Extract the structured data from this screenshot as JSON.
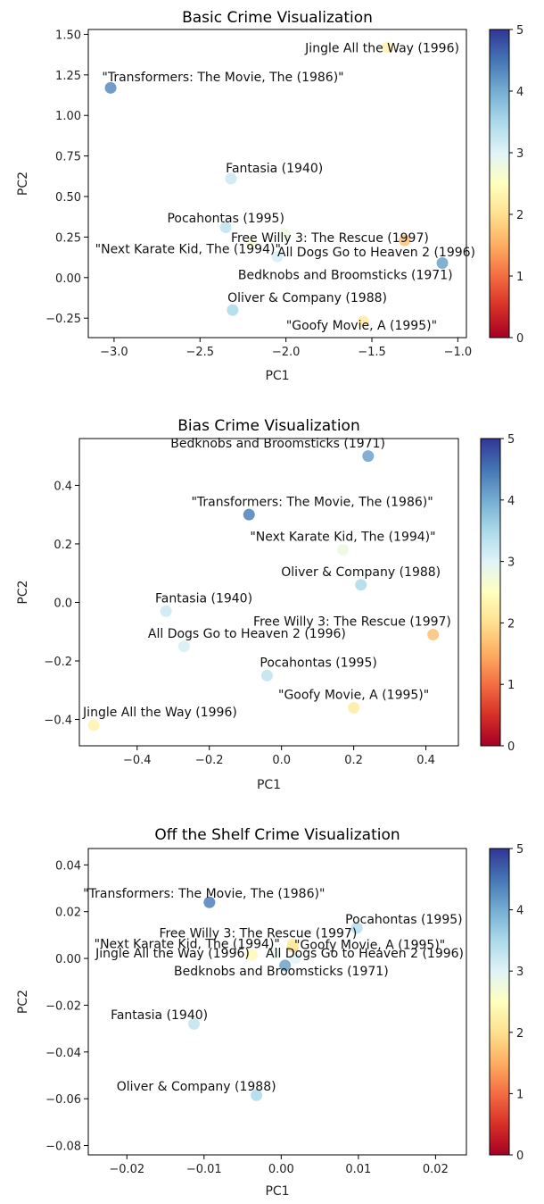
{
  "colorbar": {
    "min": 0,
    "max": 5,
    "ticks": [
      "0",
      "1",
      "2",
      "3",
      "4",
      "5"
    ],
    "stops": [
      "#a50026",
      "#d73027",
      "#f46d43",
      "#fdae61",
      "#fee090",
      "#ffffbf",
      "#e0f3f8",
      "#abd9e9",
      "#74add1",
      "#4575b4",
      "#313695"
    ]
  },
  "chart_data": [
    {
      "type": "scatter",
      "title": "Basic Crime Visualization",
      "xlabel": "PC1",
      "ylabel": "PC2",
      "xlim": [
        -3.15,
        -0.95
      ],
      "ylim": [
        -0.37,
        1.53
      ],
      "xticks": [
        -3.0,
        -2.5,
        -2.0,
        -1.5,
        -1.0
      ],
      "xtick_labels": [
        "−3.0",
        "−2.5",
        "−2.0",
        "−1.5",
        "−1.0"
      ],
      "yticks": [
        -0.25,
        0.0,
        0.25,
        0.5,
        0.75,
        1.0,
        1.25,
        1.5
      ],
      "ytick_labels": [
        "−0.25",
        "0.00",
        "0.25",
        "0.50",
        "0.75",
        "1.00",
        "1.25",
        "1.50"
      ],
      "points": [
        {
          "label": "Jingle All the Way (1996)",
          "x": -1.41,
          "y": 1.42,
          "value": 2.3,
          "anchor": "middle",
          "dx": -0.03,
          "dy": -0.03
        },
        {
          "label": "\"Transformers: The Movie, The (1986)\"",
          "x": -3.02,
          "y": 1.17,
          "value": 4.3,
          "anchor": "start",
          "dx": -0.05,
          "dy": 0.04
        },
        {
          "label": "Fantasia (1940)",
          "x": -2.32,
          "y": 0.61,
          "value": 3.2,
          "anchor": "start",
          "dx": -0.03,
          "dy": 0.04
        },
        {
          "label": "Pocahontas (1995)",
          "x": -2.35,
          "y": 0.31,
          "value": 3.3,
          "anchor": "middle",
          "dx": 0.0,
          "dy": 0.03
        },
        {
          "label": "Free Willy 3: The Rescue (1997)",
          "x": -2.01,
          "y": 0.27,
          "value": 2.8,
          "anchor": "start",
          "dx": -0.31,
          "dy": -0.05
        },
        {
          "label": "\"Next Karate Kid, The (1994)\"",
          "x": -2.2,
          "y": 0.22,
          "value": 2.7,
          "anchor": "middle",
          "dx": -0.37,
          "dy": -0.07
        },
        {
          "label": "All Dogs Go to Heaven 2 (1996)",
          "x": -2.05,
          "y": 0.13,
          "value": 3.1,
          "anchor": "start",
          "dx": 0.0,
          "dy": 0.0
        },
        {
          "label": "Free Willy 3 marker",
          "hidden_label": true,
          "x": -1.31,
          "y": 0.23,
          "value": 1.7,
          "anchor": "start",
          "dx": 0,
          "dy": 0
        },
        {
          "label": "Bedknobs and Broomsticks (1971)",
          "x": -1.09,
          "y": 0.09,
          "value": 4.1,
          "anchor": "end",
          "dx": 0.06,
          "dy": -0.1
        },
        {
          "label": "Oliver & Company (1988)",
          "x": -2.31,
          "y": -0.2,
          "value": 3.5,
          "anchor": "start",
          "dx": -0.03,
          "dy": 0.05
        },
        {
          "label": "\"Goofy Movie, A (1995)\"",
          "x": -1.55,
          "y": -0.27,
          "value": 2.2,
          "anchor": "middle",
          "dx": -0.01,
          "dy": -0.05
        }
      ]
    },
    {
      "type": "scatter",
      "title": "Bias Crime Visualization",
      "xlabel": "PC1",
      "ylabel": "PC2",
      "xlim": [
        -0.56,
        0.49
      ],
      "ylim": [
        -0.49,
        0.56
      ],
      "xticks": [
        -0.4,
        -0.2,
        0.0,
        0.2,
        0.4
      ],
      "xtick_labels": [
        "−0.4",
        "−0.2",
        "0.0",
        "0.2",
        "0.4"
      ],
      "yticks": [
        -0.4,
        -0.2,
        0.0,
        0.2,
        0.4
      ],
      "ytick_labels": [
        "−0.4",
        "−0.2",
        "0.0",
        "0.2",
        "0.4"
      ],
      "points": [
        {
          "label": "Bedknobs and Broomsticks (1971)",
          "x": 0.24,
          "y": 0.5,
          "value": 4.1,
          "anchor": "middle",
          "dx": -0.25,
          "dy": 0.03
        },
        {
          "label": "\"Transformers: The Movie, The (1986)\"",
          "x": -0.09,
          "y": 0.3,
          "value": 4.4,
          "anchor": "start",
          "dx": -0.16,
          "dy": 0.03
        },
        {
          "label": "\"Next Karate Kid, The (1994)\"",
          "x": 0.17,
          "y": 0.18,
          "value": 2.8,
          "anchor": "middle",
          "dx": 0.0,
          "dy": 0.03
        },
        {
          "label": "Oliver & Company (1988)",
          "x": 0.22,
          "y": 0.06,
          "value": 3.5,
          "anchor": "middle",
          "dx": 0.0,
          "dy": 0.03
        },
        {
          "label": "Fantasia (1940)",
          "x": -0.32,
          "y": -0.03,
          "value": 3.2,
          "anchor": "start",
          "dx": -0.03,
          "dy": 0.03
        },
        {
          "label": "Free Willy 3: The Rescue (1997)",
          "x": 0.42,
          "y": -0.11,
          "value": 1.7,
          "anchor": "end",
          "dx": 0.05,
          "dy": 0.03
        },
        {
          "label": "All Dogs Go to Heaven 2 (1996)",
          "x": -0.27,
          "y": -0.15,
          "value": 3.1,
          "anchor": "start",
          "dx": -0.1,
          "dy": 0.03
        },
        {
          "label": "Pocahontas (1995)",
          "x": -0.04,
          "y": -0.25,
          "value": 3.3,
          "anchor": "start",
          "dx": -0.02,
          "dy": 0.03
        },
        {
          "label": "\"Goofy Movie, A (1995)\"",
          "x": 0.2,
          "y": -0.36,
          "value": 2.2,
          "anchor": "middle",
          "dx": 0.0,
          "dy": 0.03
        },
        {
          "label": "Jingle All the Way (1996)",
          "x": -0.52,
          "y": -0.42,
          "value": 2.3,
          "anchor": "start",
          "dx": -0.03,
          "dy": 0.03
        }
      ]
    },
    {
      "type": "scatter",
      "title": "Off the Shelf Crime Visualization",
      "xlabel": "PC1",
      "ylabel": "PC2",
      "xlim": [
        -0.025,
        0.024
      ],
      "ylim": [
        -0.084,
        0.047
      ],
      "xticks": [
        -0.02,
        -0.01,
        0.0,
        0.01,
        0.02
      ],
      "xtick_labels": [
        "−0.02",
        "−0.01",
        "0.00",
        "0.01",
        "0.02"
      ],
      "yticks": [
        -0.08,
        -0.06,
        -0.04,
        -0.02,
        0.0,
        0.02,
        0.04
      ],
      "ytick_labels": [
        "−0.08",
        "−0.06",
        "−0.04",
        "−0.02",
        "0.00",
        "0.02",
        "0.04"
      ],
      "points": [
        {
          "label": "\"Transformers: The Movie, The (1986)\"",
          "x": -0.0093,
          "y": 0.024,
          "value": 4.4,
          "anchor": "middle",
          "dx": -0.0007,
          "dy": 0.002
        },
        {
          "label": "Pocahontas (1995)",
          "x": 0.0098,
          "y": 0.013,
          "value": 3.4,
          "anchor": "start",
          "dx": -0.0015,
          "dy": 0.002
        },
        {
          "label": "Free Willy 3: The Rescue (1997)",
          "x": 0.0015,
          "y": 0.005,
          "value": 1.8,
          "anchor": "middle",
          "dx": -0.0045,
          "dy": 0.004
        },
        {
          "label": "\"Next Karate Kid, The (1994)\"",
          "x": -0.0038,
          "y": 0.0015,
          "value": 2.4,
          "anchor": "middle",
          "dx": -0.0084,
          "dy": 0.003
        },
        {
          "label": "\"Goofy Movie, A (1995)\"",
          "x": 0.0015,
          "y": 0.006,
          "value": 2.2,
          "anchor": "start",
          "dx": 0.0002,
          "dy": -0.002
        },
        {
          "label": "Jingle All the Way (1996)",
          "x": -0.0008,
          "y": 0.002,
          "value": 2.9,
          "anchor": "end",
          "dx": -0.0033,
          "dy": -0.0015
        },
        {
          "label": "All Dogs Go to Heaven 2 (1996)",
          "x": 0.0005,
          "y": -0.003,
          "value": 4.1,
          "anchor": "start",
          "dx": -0.0025,
          "dy": 0.0035
        },
        {
          "label": "Bedknobs and Broomsticks (1971)",
          "x": 0.0018,
          "y": 0.0,
          "value": 3.0,
          "anchor": "middle",
          "dx": -0.0018,
          "dy": -0.0073
        },
        {
          "label": "Fantasia (1940)",
          "x": -0.0113,
          "y": -0.028,
          "value": 3.3,
          "anchor": "middle",
          "dx": -0.0045,
          "dy": 0.002
        },
        {
          "label": "Oliver & Company (1988)",
          "x": -0.0032,
          "y": -0.0585,
          "value": 3.5,
          "anchor": "middle",
          "dx": -0.0078,
          "dy": 0.002
        }
      ]
    }
  ]
}
